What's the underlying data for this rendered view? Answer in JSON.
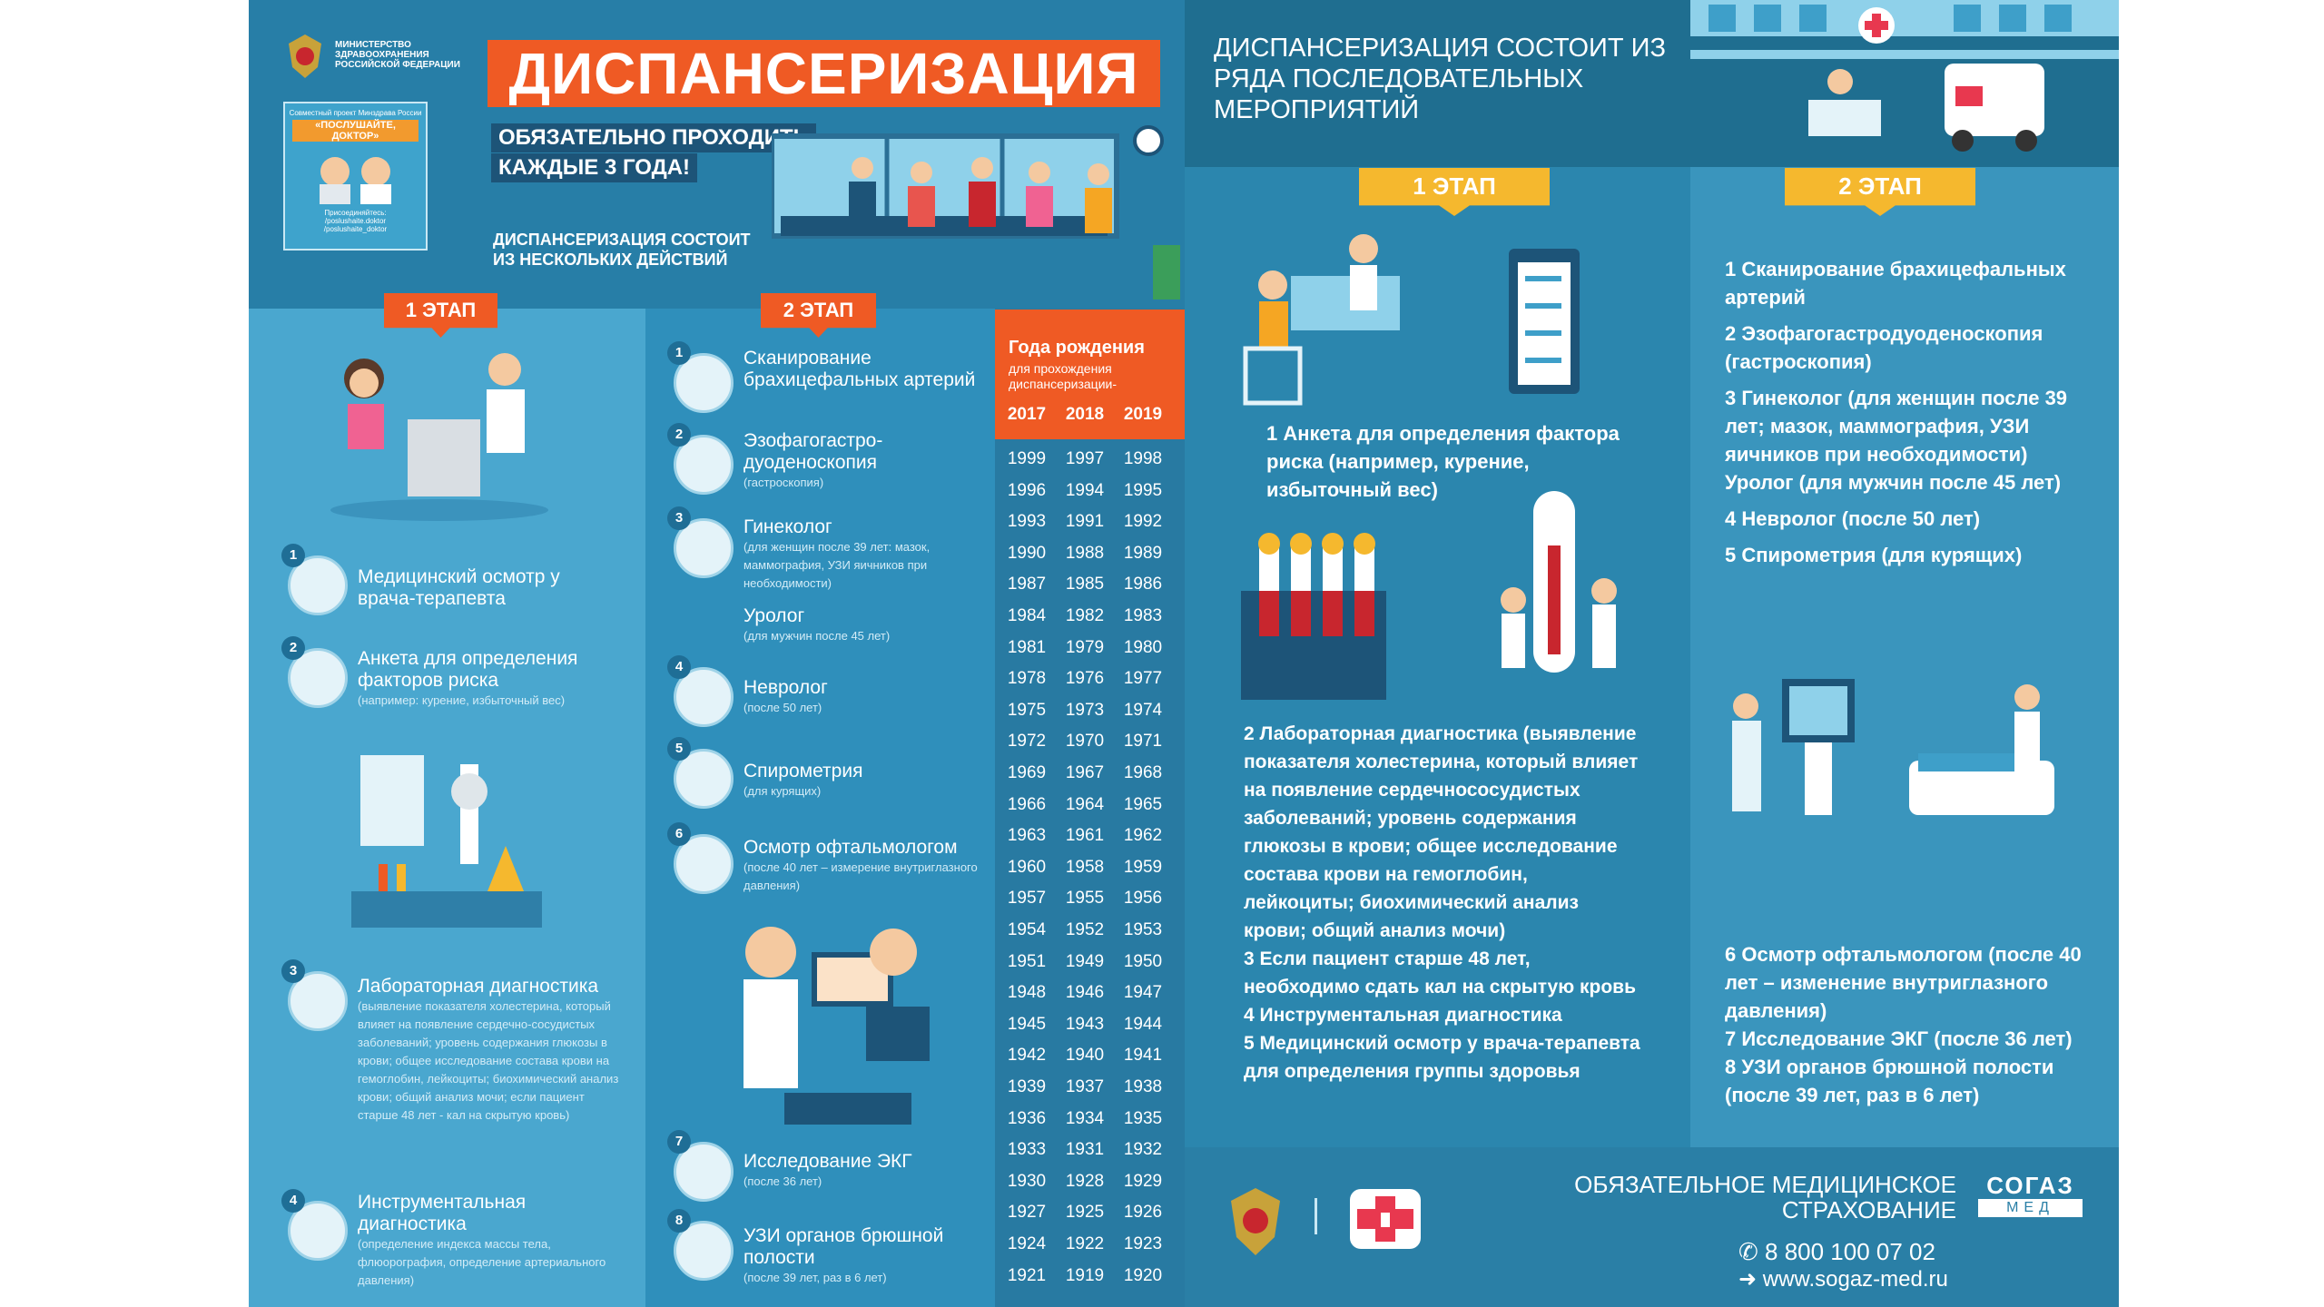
{
  "left": {
    "ministry": "МИНИСТЕРСТВО ЗДРАВООХРАНЕНИЯ РОССИЙСКОЙ ФЕДЕРАЦИИ",
    "project": {
      "line1": "Совместный проект Минздрава России",
      "title": "«ПОСЛУШАЙТЕ, ДОКТОР»",
      "join": "Присоединяйтесь:",
      "links": [
        "/poslushaite.doktor",
        "/poslushaite_doktor"
      ]
    },
    "title": "ДИСПАНСЕРИЗАЦИЯ",
    "subtitle": [
      "ОБЯЗАТЕЛЬНО ПРОХОДИТЬ",
      "КАЖДЫЕ 3 ГОДА!"
    ],
    "note": [
      "ДИСПАНСЕРИЗАЦИЯ СОСТОИТ",
      "ИЗ НЕСКОЛЬКИХ ДЕЙСТВИЙ"
    ],
    "stage1": {
      "label": "1 ЭТАП",
      "items": [
        {
          "num": 1,
          "title": "Медицинский осмотр у врача-терапевта"
        },
        {
          "num": 2,
          "title": "Анкета для определения факторов риска",
          "detail": "(например: курение, избыточный вес)"
        },
        {
          "num": 3,
          "title": "Лабораторная диагностика",
          "detail": "(выявление показателя холестерина, который влияет на появление сердечно-сосудистых заболеваний; уровень содержания глюкозы в крови; общее исследование состава крови на гемоглобин, лейкоциты; биохимический анализ крови; общий анализ мочи; если пациент старше 48 лет - кал на скрытую кровь)"
        },
        {
          "num": 4,
          "title": "Инструментальная диагностика",
          "detail": "(определение индекса массы тела, флюорография, определение артериального давления)"
        }
      ]
    },
    "stage2": {
      "label": "2 ЭТАП",
      "items": [
        {
          "num": 1,
          "title": "Сканирование брахицефальных артерий"
        },
        {
          "num": 2,
          "title": "Эзофагогастро-дуоденоскопия",
          "detail": "(гастроскопия)"
        },
        {
          "num": 3,
          "title": "Гинеколог",
          "detail": "(для женщин после 39 лет: мазок, маммография, УЗИ яичников при необходимости)",
          "extra_title": "Уролог",
          "extra_detail": "(для мужчин после 45 лет)"
        },
        {
          "num": 4,
          "title": "Невролог",
          "detail": "(после 50 лет)"
        },
        {
          "num": 5,
          "title": "Спирометрия",
          "detail": "(для курящих)"
        },
        {
          "num": 6,
          "title": "Осмотр офтальмологом",
          "detail": "(после 40 лет – измерение внутриглазного давления)"
        },
        {
          "num": 7,
          "title": "Исследование ЭКГ",
          "detail": "(после 36 лет)"
        },
        {
          "num": 8,
          "title": "УЗИ органов брюшной полости",
          "detail": "(после 39 лет, раз в 6 лет)"
        }
      ]
    },
    "years": {
      "title": "Года рождения",
      "subtitle": "для прохождения диспансеризации-",
      "columns": [
        2017,
        2018,
        2019
      ],
      "rows": [
        [
          1999,
          1997,
          1998
        ],
        [
          1996,
          1994,
          1995
        ],
        [
          1993,
          1991,
          1992
        ],
        [
          1990,
          1988,
          1989
        ],
        [
          1987,
          1985,
          1986
        ],
        [
          1984,
          1982,
          1983
        ],
        [
          1981,
          1979,
          1980
        ],
        [
          1978,
          1976,
          1977
        ],
        [
          1975,
          1973,
          1974
        ],
        [
          1972,
          1970,
          1971
        ],
        [
          1969,
          1967,
          1968
        ],
        [
          1966,
          1964,
          1965
        ],
        [
          1963,
          1961,
          1962
        ],
        [
          1960,
          1958,
          1959
        ],
        [
          1957,
          1955,
          1956
        ],
        [
          1954,
          1952,
          1953
        ],
        [
          1951,
          1949,
          1950
        ],
        [
          1948,
          1946,
          1947
        ],
        [
          1945,
          1943,
          1944
        ],
        [
          1942,
          1940,
          1941
        ],
        [
          1939,
          1937,
          1938
        ],
        [
          1936,
          1934,
          1935
        ],
        [
          1933,
          1931,
          1932
        ],
        [
          1930,
          1928,
          1929
        ],
        [
          1927,
          1925,
          1926
        ],
        [
          1924,
          1922,
          1923
        ],
        [
          1921,
          1919,
          1920
        ]
      ]
    }
  },
  "right": {
    "title": [
      "ДИСПАНСЕРИЗАЦИЯ СОСТОИТ ИЗ",
      "РЯДА ПОСЛЕДОВАТЕЛЬНЫХ",
      "МЕРОПРИЯТИЙ"
    ],
    "stage1": {
      "label": "1 ЭТАП",
      "items": [
        "1  Анкета для определения фактора риска (например, курение, избыточный вес)",
        "2 Лабораторная диагностика (выявление показателя холестерина, который влияет на появление сердечнососудистых заболеваний; уровень содержания глюкозы в крови; общее исследование состава крови на гемоглобин, лейкоциты; биохимический анализ крови; общий анализ мочи)",
        "3 Если пациент старше 48 лет, необходимо сдать кал на скрытую кровь",
        "4 Инструментальная диагностика",
        "5 Медицинский осмотр у врача-терапевта для определения группы здоровья"
      ]
    },
    "stage2": {
      "label": "2 ЭТАП",
      "items": [
        "1 Сканирование брахицефальных артерий",
        "2 Эзофагогастродуоденоскопия (гастроскопия)",
        "3 Гинеколог (для женщин после 39 лет; мазок, маммография, УЗИ яичников при необходимости) Уролог (для мужчин после 45 лет)",
        "4 Невролог (после 50 лет)",
        "5 Спирометрия (для курящих)",
        "6 Осмотр офтальмологом (после 40 лет – изменение внутриглазного давления)",
        "7 Исследование ЭКГ (после 36 лет)",
        "8 УЗИ органов брюшной полости (после 39 лет, раз в 6 лет)"
      ]
    },
    "footer": {
      "insurance": [
        "ОБЯЗАТЕЛЬНОЕ МЕДИЦИНСКОЕ",
        "СТРАХОВАНИЕ"
      ],
      "brand": "СОГАЗ",
      "brand_sub": "МЕД",
      "phone": "8 800 100 07 02",
      "site": "www.sogaz-med.ru"
    }
  }
}
